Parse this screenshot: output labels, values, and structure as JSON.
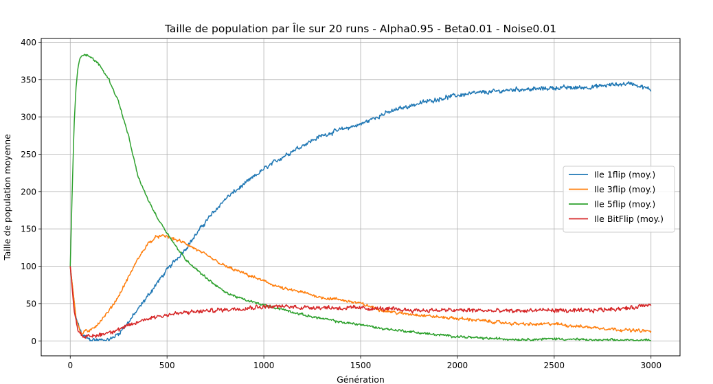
{
  "chart_data": {
    "type": "line",
    "title": "Taille de population par Île sur 20 runs - Alpha0.95 - Beta0.01 - Noise0.01",
    "xlabel": "Génération",
    "ylabel": "Taille de population moyenne",
    "xlim": [
      -150,
      3150
    ],
    "ylim": [
      -20,
      405
    ],
    "xticks": [
      0,
      500,
      1000,
      1500,
      2000,
      2500,
      3000
    ],
    "yticks": [
      0,
      50,
      100,
      150,
      200,
      250,
      300,
      350,
      400
    ],
    "grid": true,
    "legend_position": "center-right",
    "series": [
      {
        "name": "Ile 1flip (moy.)",
        "color": "#1f77b4",
        "noise": 3.5,
        "x": [
          0,
          30,
          60,
          100,
          150,
          200,
          250,
          300,
          350,
          400,
          450,
          500,
          550,
          600,
          700,
          800,
          900,
          1000,
          1100,
          1200,
          1300,
          1400,
          1500,
          1600,
          1700,
          1800,
          1900,
          2000,
          2100,
          2200,
          2300,
          2400,
          2500,
          2600,
          2700,
          2800,
          2900,
          3000
        ],
        "y": [
          100,
          30,
          8,
          2,
          1,
          1,
          10,
          25,
          42,
          60,
          78,
          95,
          110,
          125,
          160,
          190,
          210,
          230,
          247,
          262,
          275,
          283,
          290,
          302,
          311,
          318,
          324,
          329,
          332,
          334,
          337,
          337,
          339,
          339,
          340,
          343,
          345,
          336
        ]
      },
      {
        "name": "Ile 3flip (moy.)",
        "color": "#ff7f0e",
        "noise": 2.5,
        "x": [
          0,
          30,
          60,
          80,
          100,
          150,
          200,
          250,
          300,
          350,
          400,
          450,
          500,
          550,
          600,
          700,
          800,
          900,
          1000,
          1100,
          1200,
          1300,
          1400,
          1500,
          1600,
          1700,
          1800,
          1900,
          2000,
          2100,
          2200,
          2300,
          2400,
          2500,
          2600,
          2700,
          2800,
          2900,
          3000
        ],
        "y": [
          100,
          30,
          8,
          15,
          12,
          25,
          40,
          60,
          85,
          110,
          130,
          140,
          140,
          135,
          130,
          115,
          100,
          90,
          80,
          70,
          65,
          58,
          55,
          50,
          42,
          37,
          35,
          32,
          30,
          28,
          25,
          23,
          22,
          23,
          20,
          18,
          16,
          14,
          13
        ]
      },
      {
        "name": "Ile 5flip (moy.)",
        "color": "#2ca02c",
        "noise": 2,
        "x": [
          0,
          10,
          20,
          30,
          40,
          50,
          60,
          80,
          100,
          150,
          200,
          250,
          300,
          350,
          400,
          450,
          500,
          550,
          600,
          700,
          800,
          900,
          1000,
          1100,
          1200,
          1300,
          1400,
          1500,
          1600,
          1700,
          1800,
          1900,
          2000,
          2100,
          2200,
          2300,
          2400,
          2500,
          2600,
          2700,
          2800,
          2900,
          3000
        ],
        "y": [
          100,
          200,
          290,
          340,
          365,
          378,
          383,
          384,
          381,
          370,
          350,
          320,
          275,
          220,
          190,
          165,
          145,
          125,
          108,
          85,
          65,
          55,
          48,
          42,
          35,
          30,
          25,
          22,
          17,
          14,
          11,
          8,
          6,
          4,
          3,
          2,
          2,
          3,
          2,
          1,
          1,
          1,
          1
        ]
      },
      {
        "name": "Ile BitFlip (moy.)",
        "color": "#d62728",
        "noise": 3.5,
        "x": [
          0,
          20,
          40,
          60,
          80,
          100,
          150,
          200,
          250,
          300,
          350,
          400,
          450,
          500,
          600,
          700,
          800,
          900,
          1000,
          1100,
          1200,
          1300,
          1400,
          1500,
          1600,
          1700,
          1800,
          1900,
          2000,
          2100,
          2200,
          2300,
          2400,
          2500,
          2600,
          2700,
          2800,
          2900,
          3000
        ],
        "y": [
          100,
          40,
          15,
          8,
          5,
          6,
          8,
          12,
          15,
          20,
          25,
          30,
          33,
          35,
          38,
          40,
          42,
          44,
          46,
          46,
          45,
          45,
          44,
          44,
          43,
          42,
          41,
          41,
          41,
          41,
          40,
          40,
          41,
          41,
          40,
          41,
          43,
          44,
          50
        ]
      }
    ]
  }
}
